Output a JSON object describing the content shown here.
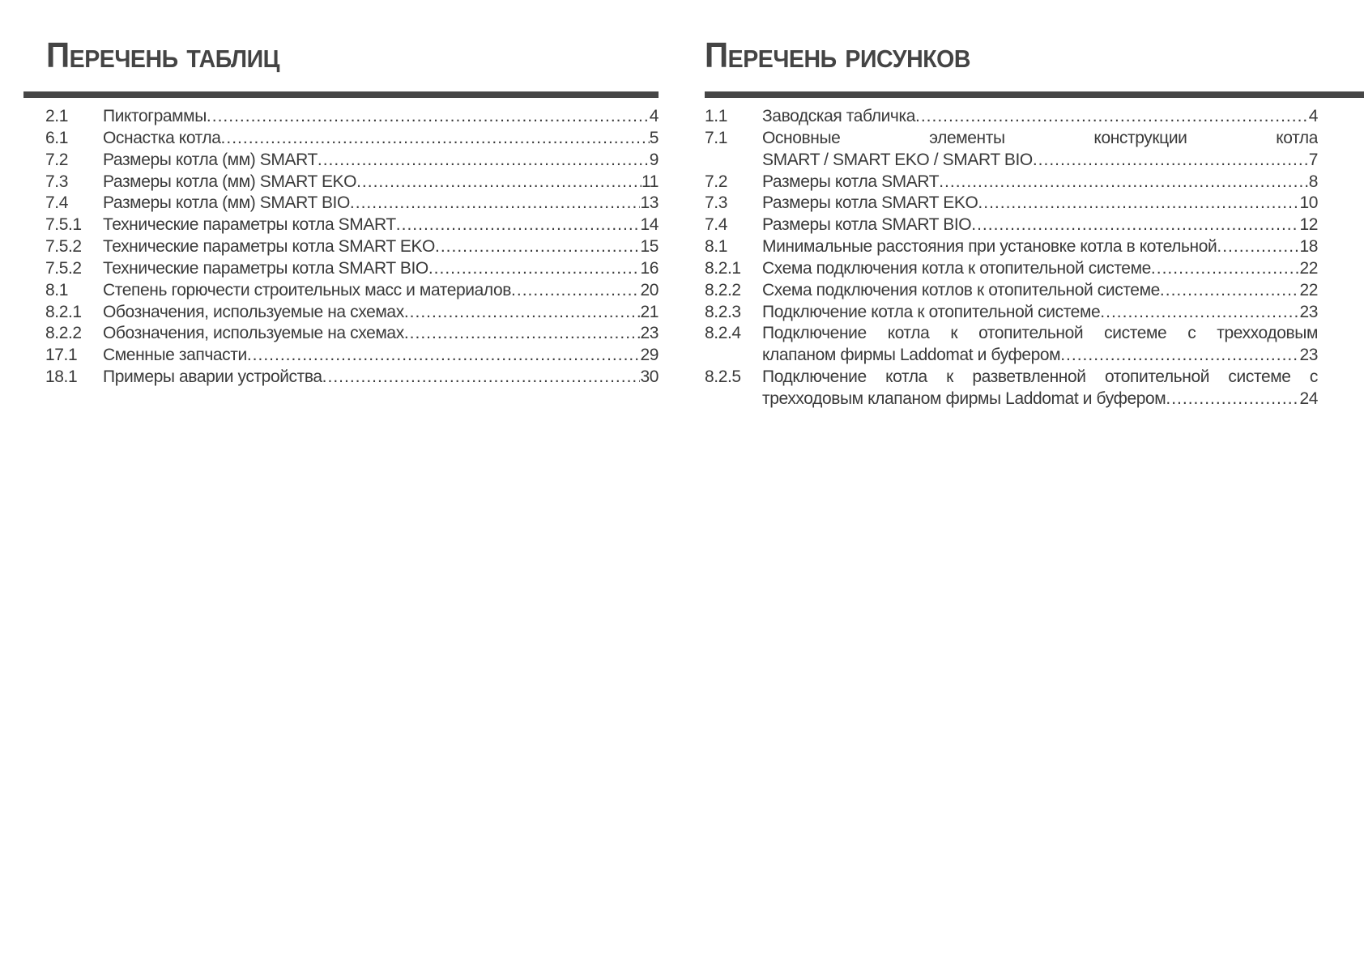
{
  "tables": {
    "title": "Перечень таблиц",
    "items": [
      {
        "num": "2.1",
        "lines": [
          "Пиктограммы"
        ],
        "page": "4"
      },
      {
        "num": "6.1",
        "lines": [
          "Оснастка котла"
        ],
        "page": "5"
      },
      {
        "num": "7.2",
        "lines": [
          "Размеры котла (мм) SMART"
        ],
        "page": "9"
      },
      {
        "num": "7.3",
        "lines": [
          "Размеры котла (мм) SMART EKO"
        ],
        "page": "11"
      },
      {
        "num": "7.4",
        "lines": [
          "Размеры котла (мм) SMART BIO"
        ],
        "page": "13"
      },
      {
        "num": "7.5.1",
        "lines": [
          "Технические параметры котла SMART"
        ],
        "page": "14"
      },
      {
        "num": "7.5.2",
        "lines": [
          "Технические параметры котла SMART EKO"
        ],
        "page": "15"
      },
      {
        "num": "7.5.2",
        "lines": [
          "Технические параметры котла SMART BIO"
        ],
        "page": "16"
      },
      {
        "num": "8.1",
        "lines": [
          "Степень горючести строительных масс и материалов"
        ],
        "page": "20"
      },
      {
        "num": "8.2.1",
        "lines": [
          "Обозначения, используемые на схемах"
        ],
        "page": "21"
      },
      {
        "num": "8.2.2",
        "lines": [
          "Обозначения, используемые на схемах"
        ],
        "page": "23"
      },
      {
        "num": "17.1",
        "lines": [
          "Сменные запчасти"
        ],
        "page": "29"
      },
      {
        "num": "18.1",
        "lines": [
          "Примеры аварии устройства"
        ],
        "page": "30"
      }
    ]
  },
  "figures": {
    "title": "Перечень рисунков",
    "items": [
      {
        "num": "1.1",
        "lines": [
          "Заводская табличка"
        ],
        "page": "4"
      },
      {
        "num": "7.1",
        "lines": [
          "Основные элементы конструкции котла",
          "SMART / SMART EKO / SMART BIO"
        ],
        "page": "7"
      },
      {
        "num": "7.2",
        "lines": [
          "Размеры котла SMART"
        ],
        "page": "8"
      },
      {
        "num": "7.3",
        "lines": [
          "Размеры котла SMART EKO"
        ],
        "page": "10"
      },
      {
        "num": "7.4",
        "lines": [
          "Размеры котла SMART BIO"
        ],
        "page": "12"
      },
      {
        "num": "8.1",
        "lines": [
          "Минимальные расстояния при установке котла в котельной"
        ],
        "page": "18"
      },
      {
        "num": "8.2.1",
        "lines": [
          "Схема подключения котла к отопительной системе"
        ],
        "page": "22"
      },
      {
        "num": "8.2.2",
        "lines": [
          "Схема подключения котлов к отопительной системе"
        ],
        "page": "22"
      },
      {
        "num": "8.2.3",
        "lines": [
          "Подключение котла к отопительной системе"
        ],
        "page": "23"
      },
      {
        "num": "8.2.4",
        "lines": [
          "Подключение котла к отопительной системе с трехходовым",
          "клапаном фирмы Laddomat и буфером"
        ],
        "page": "23"
      },
      {
        "num": "8.2.5",
        "lines": [
          "Подключение котла к разветвленной отопительной системе с",
          "трехходовым клапаном фирмы Laddomat и буфером"
        ],
        "page": "24"
      }
    ]
  },
  "colors": {
    "text": "#3a3a3a",
    "bar": "#464646"
  }
}
